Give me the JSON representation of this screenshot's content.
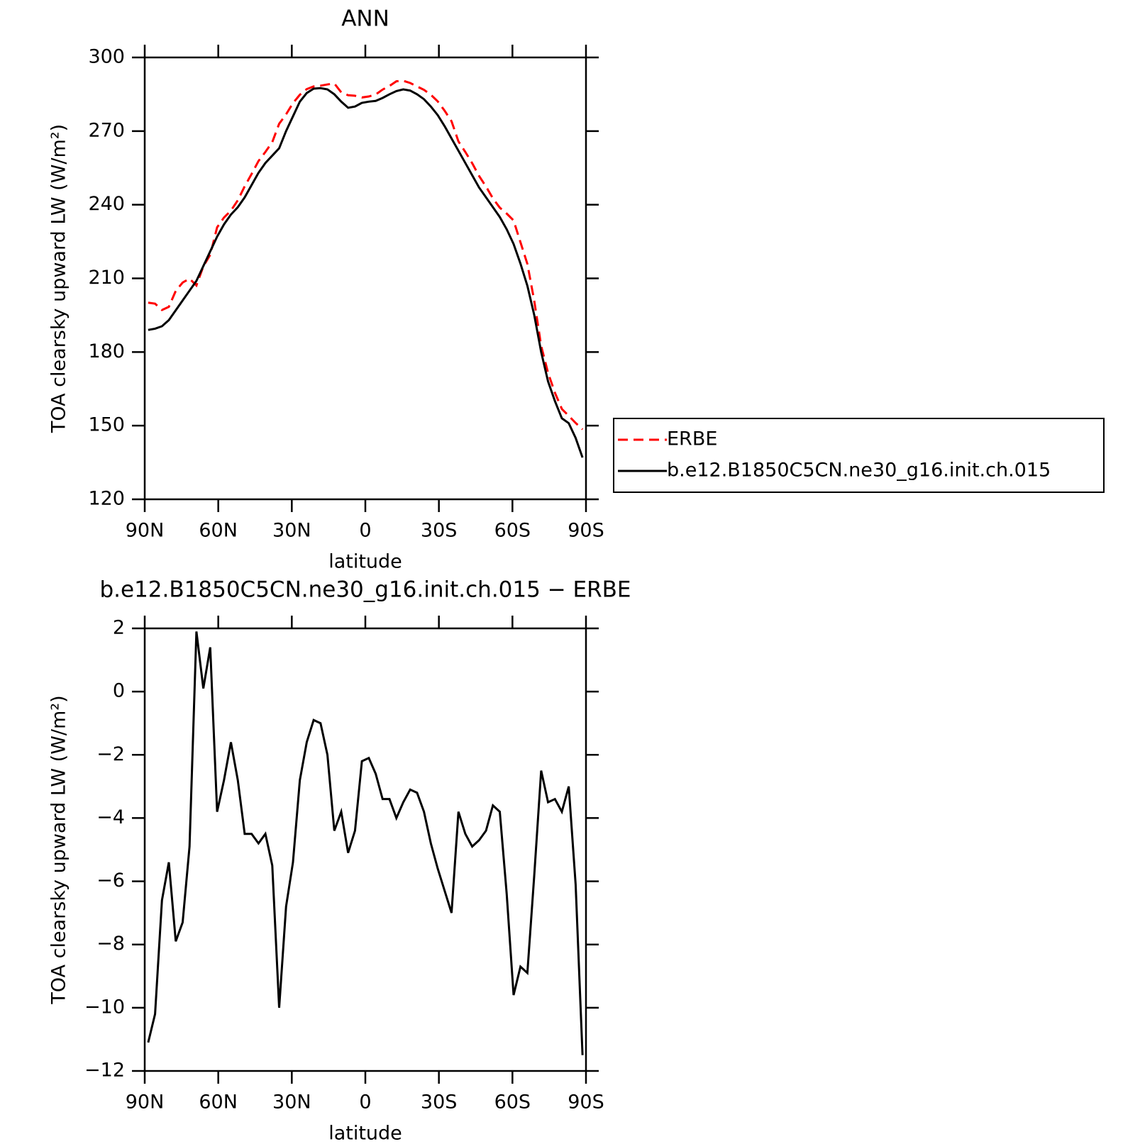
{
  "chart_data": [
    {
      "type": "line",
      "title": "ANN",
      "xlabel": "latitude",
      "ylabel": "TOA clearsky upward LW (W/m²)",
      "x": [
        88.59,
        85.78,
        82.97,
        80.16,
        77.34,
        74.53,
        71.72,
        68.91,
        66.09,
        63.28,
        60.47,
        57.66,
        54.84,
        52.03,
        49.22,
        46.41,
        43.59,
        40.78,
        37.97,
        35.16,
        32.34,
        29.53,
        26.72,
        23.91,
        21.09,
        18.28,
        15.47,
        12.66,
        9.84,
        7.03,
        4.22,
        1.41,
        -1.41,
        -4.22,
        -7.03,
        -9.84,
        -12.66,
        -15.47,
        -18.28,
        -21.09,
        -23.91,
        -26.72,
        -29.53,
        -32.34,
        -35.16,
        -37.97,
        -40.78,
        -43.59,
        -46.41,
        -49.22,
        -52.03,
        -54.84,
        -57.66,
        -60.47,
        -63.28,
        -66.09,
        -68.91,
        -71.72,
        -74.53,
        -77.34,
        -80.16,
        -82.97,
        -85.78,
        -88.59
      ],
      "series": [
        {
          "name": "ERBE",
          "color": "#ff0000",
          "linestyle": "dashed",
          "values": [
            200.1,
            199.7,
            197.1,
            198.4,
            204.9,
            208.3,
            209.9,
            207.1,
            214.9,
            219.6,
            230.8,
            234.8,
            237.6,
            241.8,
            247.5,
            252.5,
            257.8,
            261.5,
            265.5,
            273,
            276.8,
            281.4,
            284.8,
            287.1,
            288.2,
            288.5,
            289,
            289.4,
            285.8,
            284.6,
            284.4,
            283.7,
            284.1,
            284.9,
            286.9,
            288.4,
            290.3,
            290.5,
            289.6,
            288.2,
            286.8,
            284.8,
            282.1,
            278.3,
            274,
            265.8,
            261.5,
            256.9,
            251.7,
            247.4,
            242.6,
            238.8,
            236.4,
            233.6,
            224.7,
            215.9,
            200.8,
            182.5,
            171.5,
            163.4,
            156.8,
            154,
            151.1,
            148.5
          ]
        },
        {
          "name": "b.e12.B1850C5CN.ne30_g16.init.ch.015",
          "color": "#000000",
          "linestyle": "solid",
          "values": [
            189,
            189.5,
            190.5,
            193,
            197,
            201,
            205,
            209,
            215,
            221,
            227,
            232,
            236,
            239,
            243,
            248,
            253,
            257,
            260,
            263,
            270,
            276,
            282,
            285.5,
            287.3,
            287.5,
            287,
            285,
            282,
            279.5,
            280,
            281.5,
            282,
            282.3,
            283.5,
            285,
            286.3,
            287,
            286.5,
            285,
            283,
            280,
            276.5,
            272,
            267,
            262,
            257,
            252,
            247,
            243,
            239,
            235,
            230,
            224,
            216,
            207,
            195,
            180,
            168,
            160,
            153,
            151,
            145,
            137
          ]
        }
      ],
      "xlim": [
        90,
        -90
      ],
      "xticks": [
        {
          "value": 90,
          "label": "90N"
        },
        {
          "value": 60,
          "label": "60N"
        },
        {
          "value": 30,
          "label": "30N"
        },
        0,
        {
          "value": -30,
          "label": "30S"
        },
        {
          "value": -60,
          "label": "60S"
        },
        {
          "value": -90,
          "label": "90S"
        }
      ],
      "ylim": [
        120,
        300
      ],
      "yticks": [
        120,
        150,
        180,
        210,
        240,
        270,
        300
      ],
      "legend": "right"
    },
    {
      "type": "line",
      "title": "b.e12.B1850C5CN.ne30_g16.init.ch.015 − ERBE",
      "xlabel": "latitude",
      "ylabel": "TOA clearsky upward LW (W/m²)",
      "x": [
        88.59,
        85.78,
        82.97,
        80.16,
        77.34,
        74.53,
        71.72,
        68.91,
        66.09,
        63.28,
        60.47,
        57.66,
        54.84,
        52.03,
        49.22,
        46.41,
        43.59,
        40.78,
        37.97,
        35.16,
        32.34,
        29.53,
        26.72,
        23.91,
        21.09,
        18.28,
        15.47,
        12.66,
        9.84,
        7.03,
        4.22,
        1.41,
        -1.41,
        -4.22,
        -7.03,
        -9.84,
        -12.66,
        -15.47,
        -18.28,
        -21.09,
        -23.91,
        -26.72,
        -29.53,
        -32.34,
        -35.16,
        -37.97,
        -40.78,
        -43.59,
        -46.41,
        -49.22,
        -52.03,
        -54.84,
        -57.66,
        -60.47,
        -63.28,
        -66.09,
        -68.91,
        -71.72,
        -74.53,
        -77.34,
        -80.16,
        -82.97,
        -85.78,
        -88.59
      ],
      "series": [
        {
          "color": "#000000",
          "linestyle": "solid",
          "values": [
            -11.1,
            -10.2,
            -6.6,
            -5.4,
            -7.9,
            -7.3,
            -4.9,
            1.9,
            0.1,
            1.4,
            -3.8,
            -2.8,
            -1.6,
            -2.8,
            -4.5,
            -4.5,
            -4.8,
            -4.5,
            -5.5,
            -10,
            -6.8,
            -5.4,
            -2.8,
            -1.6,
            -0.9,
            -1,
            -2,
            -4.4,
            -3.8,
            -5.1,
            -4.4,
            -2.2,
            -2.1,
            -2.6,
            -3.4,
            -3.4,
            -4,
            -3.5,
            -3.1,
            -3.2,
            -3.8,
            -4.8,
            -5.6,
            -6.3,
            -7,
            -3.8,
            -4.5,
            -4.9,
            -4.7,
            -4.4,
            -3.6,
            -3.8,
            -6.4,
            -9.6,
            -8.7,
            -8.9,
            -5.8,
            -2.5,
            -3.5,
            -3.4,
            -3.8,
            -3,
            -6.1,
            -11.5
          ]
        }
      ],
      "xlim": [
        90,
        -90
      ],
      "xticks": [
        {
          "value": 90,
          "label": "90N"
        },
        {
          "value": 60,
          "label": "60N"
        },
        {
          "value": 30,
          "label": "30N"
        },
        0,
        {
          "value": -30,
          "label": "30S"
        },
        {
          "value": -60,
          "label": "60S"
        },
        {
          "value": -90,
          "label": "90S"
        }
      ],
      "ylim": [
        -12,
        2
      ],
      "yticks": [
        {
          "value": -12,
          "label": "−12"
        },
        {
          "value": -10,
          "label": "−10"
        },
        {
          "value": -8,
          "label": "−8"
        },
        {
          "value": -6,
          "label": "−6"
        },
        {
          "value": -4,
          "label": "−4"
        },
        {
          "value": -2,
          "label": "−2"
        },
        0,
        2
      ]
    }
  ]
}
